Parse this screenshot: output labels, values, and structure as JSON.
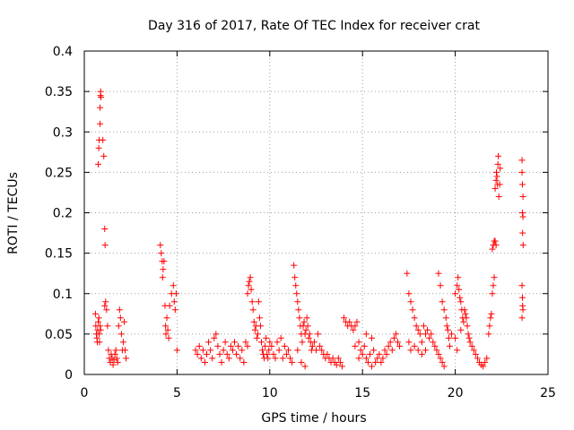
{
  "chart_data": {
    "type": "scatter",
    "title": "Day 316 of 2017, Rate Of TEC Index for receiver crat",
    "xlabel": "GPS time / hours",
    "ylabel": "ROTI / TECUs",
    "xlim": [
      0,
      25
    ],
    "ylim": [
      0,
      0.4
    ],
    "xticks": [
      0,
      5,
      10,
      15,
      20,
      25
    ],
    "yticks": [
      0,
      0.05,
      0.1,
      0.15,
      0.2,
      0.25,
      0.3,
      0.35,
      0.4
    ],
    "xtick_labels": [
      "0",
      "5",
      "10",
      "15",
      "20",
      "25"
    ],
    "ytick_labels": [
      "0",
      "0.05",
      "0.1",
      "0.15",
      "0.2",
      "0.25",
      "0.3",
      "0.35",
      "0.4"
    ],
    "grid": true,
    "marker": "+",
    "color": "#ff0000",
    "series": [
      {
        "name": "ROTI",
        "points": [
          [
            0.6,
            0.075
          ],
          [
            0.62,
            0.06
          ],
          [
            0.65,
            0.05
          ],
          [
            0.68,
            0.045
          ],
          [
            0.7,
            0.04
          ],
          [
            0.72,
            0.055
          ],
          [
            0.75,
            0.065
          ],
          [
            0.78,
            0.07
          ],
          [
            0.8,
            0.05
          ],
          [
            0.82,
            0.04
          ],
          [
            0.85,
            0.06
          ],
          [
            0.88,
            0.055
          ],
          [
            0.75,
            0.26
          ],
          [
            0.78,
            0.28
          ],
          [
            0.8,
            0.29
          ],
          [
            0.85,
            0.31
          ],
          [
            0.85,
            0.33
          ],
          [
            0.87,
            0.345
          ],
          [
            0.88,
            0.35
          ],
          [
            0.9,
            0.343
          ],
          [
            1.0,
            0.29
          ],
          [
            1.05,
            0.27
          ],
          [
            1.1,
            0.18
          ],
          [
            1.12,
            0.16
          ],
          [
            1.1,
            0.085
          ],
          [
            1.15,
            0.09
          ],
          [
            1.2,
            0.08
          ],
          [
            1.25,
            0.06
          ],
          [
            1.3,
            0.03
          ],
          [
            1.35,
            0.02
          ],
          [
            1.4,
            0.015
          ],
          [
            1.45,
            0.025
          ],
          [
            1.5,
            0.02
          ],
          [
            1.55,
            0.012
          ],
          [
            1.6,
            0.018
          ],
          [
            1.65,
            0.025
          ],
          [
            1.7,
            0.03
          ],
          [
            1.75,
            0.02
          ],
          [
            1.8,
            0.015
          ],
          [
            1.85,
            0.06
          ],
          [
            1.9,
            0.08
          ],
          [
            1.95,
            0.07
          ],
          [
            2.0,
            0.05
          ],
          [
            2.05,
            0.03
          ],
          [
            2.1,
            0.04
          ],
          [
            2.15,
            0.065
          ],
          [
            2.2,
            0.03
          ],
          [
            2.25,
            0.02
          ],
          [
            4.1,
            0.16
          ],
          [
            4.15,
            0.15
          ],
          [
            4.2,
            0.14
          ],
          [
            4.22,
            0.12
          ],
          [
            4.25,
            0.13
          ],
          [
            4.3,
            0.14
          ],
          [
            4.35,
            0.085
          ],
          [
            4.38,
            0.06
          ],
          [
            4.4,
            0.05
          ],
          [
            4.45,
            0.07
          ],
          [
            4.5,
            0.055
          ],
          [
            4.55,
            0.045
          ],
          [
            4.6,
            0.085
          ],
          [
            4.7,
            0.1
          ],
          [
            4.8,
            0.11
          ],
          [
            4.85,
            0.09
          ],
          [
            4.9,
            0.08
          ],
          [
            4.95,
            0.1
          ],
          [
            5.0,
            0.03
          ],
          [
            6.0,
            0.03
          ],
          [
            6.1,
            0.025
          ],
          [
            6.2,
            0.035
          ],
          [
            6.3,
            0.02
          ],
          [
            6.4,
            0.03
          ],
          [
            6.5,
            0.015
          ],
          [
            6.6,
            0.025
          ],
          [
            6.7,
            0.04
          ],
          [
            6.8,
            0.03
          ],
          [
            6.9,
            0.02
          ],
          [
            7.0,
            0.045
          ],
          [
            7.1,
            0.05
          ],
          [
            7.2,
            0.035
          ],
          [
            7.3,
            0.025
          ],
          [
            7.4,
            0.015
          ],
          [
            7.5,
            0.03
          ],
          [
            7.6,
            0.04
          ],
          [
            7.7,
            0.025
          ],
          [
            7.8,
            0.02
          ],
          [
            7.9,
            0.035
          ],
          [
            8.0,
            0.03
          ],
          [
            8.1,
            0.04
          ],
          [
            8.2,
            0.025
          ],
          [
            8.3,
            0.035
          ],
          [
            8.4,
            0.02
          ],
          [
            8.5,
            0.03
          ],
          [
            8.6,
            0.015
          ],
          [
            8.7,
            0.04
          ],
          [
            8.8,
            0.035
          ],
          [
            8.8,
            0.1
          ],
          [
            8.85,
            0.11
          ],
          [
            8.9,
            0.115
          ],
          [
            8.95,
            0.12
          ],
          [
            9.0,
            0.105
          ],
          [
            9.05,
            0.09
          ],
          [
            9.1,
            0.08
          ],
          [
            9.15,
            0.065
          ],
          [
            9.2,
            0.055
          ],
          [
            9.25,
            0.06
          ],
          [
            9.3,
            0.045
          ],
          [
            9.35,
            0.05
          ],
          [
            9.4,
            0.09
          ],
          [
            9.45,
            0.07
          ],
          [
            9.5,
            0.06
          ],
          [
            9.55,
            0.04
          ],
          [
            9.6,
            0.03
          ],
          [
            9.65,
            0.025
          ],
          [
            9.7,
            0.02
          ],
          [
            9.75,
            0.035
          ],
          [
            9.8,
            0.045
          ],
          [
            9.85,
            0.025
          ],
          [
            9.9,
            0.02
          ],
          [
            9.95,
            0.03
          ],
          [
            10.0,
            0.04
          ],
          [
            10.1,
            0.035
          ],
          [
            10.2,
            0.025
          ],
          [
            10.3,
            0.02
          ],
          [
            10.4,
            0.04
          ],
          [
            10.5,
            0.03
          ],
          [
            10.6,
            0.045
          ],
          [
            10.7,
            0.02
          ],
          [
            10.8,
            0.035
          ],
          [
            10.9,
            0.025
          ],
          [
            11.0,
            0.03
          ],
          [
            11.1,
            0.02
          ],
          [
            11.2,
            0.015
          ],
          [
            11.3,
            0.135
          ],
          [
            11.35,
            0.12
          ],
          [
            11.4,
            0.11
          ],
          [
            11.45,
            0.1
          ],
          [
            11.5,
            0.09
          ],
          [
            11.55,
            0.08
          ],
          [
            11.6,
            0.07
          ],
          [
            11.65,
            0.06
          ],
          [
            11.7,
            0.05
          ],
          [
            11.75,
            0.04
          ],
          [
            11.8,
            0.06
          ],
          [
            11.85,
            0.065
          ],
          [
            11.9,
            0.05
          ],
          [
            11.95,
            0.055
          ],
          [
            12.0,
            0.07
          ],
          [
            12.05,
            0.06
          ],
          [
            12.1,
            0.045
          ],
          [
            12.15,
            0.05
          ],
          [
            12.2,
            0.04
          ],
          [
            12.25,
            0.03
          ],
          [
            12.3,
            0.035
          ],
          [
            12.4,
            0.04
          ],
          [
            12.5,
            0.03
          ],
          [
            12.6,
            0.05
          ],
          [
            12.7,
            0.035
          ],
          [
            12.8,
            0.03
          ],
          [
            12.9,
            0.025
          ],
          [
            13.0,
            0.02
          ],
          [
            13.1,
            0.025
          ],
          [
            13.2,
            0.02
          ],
          [
            13.3,
            0.015
          ],
          [
            13.4,
            0.02
          ],
          [
            13.5,
            0.015
          ],
          [
            13.6,
            0.012
          ],
          [
            13.7,
            0.02
          ],
          [
            13.8,
            0.015
          ],
          [
            13.9,
            0.01
          ],
          [
            11.5,
            0.03
          ],
          [
            11.7,
            0.015
          ],
          [
            11.9,
            0.01
          ],
          [
            14.0,
            0.07
          ],
          [
            14.1,
            0.065
          ],
          [
            14.2,
            0.06
          ],
          [
            14.3,
            0.065
          ],
          [
            14.4,
            0.06
          ],
          [
            14.5,
            0.055
          ],
          [
            14.6,
            0.06
          ],
          [
            14.7,
            0.065
          ],
          [
            14.8,
            0.04
          ],
          [
            14.9,
            0.03
          ],
          [
            15.0,
            0.025
          ],
          [
            15.1,
            0.035
          ],
          [
            15.2,
            0.02
          ],
          [
            15.3,
            0.015
          ],
          [
            15.4,
            0.025
          ],
          [
            15.5,
            0.01
          ],
          [
            15.6,
            0.03
          ],
          [
            15.7,
            0.015
          ],
          [
            15.8,
            0.02
          ],
          [
            15.9,
            0.025
          ],
          [
            16.0,
            0.015
          ],
          [
            16.1,
            0.02
          ],
          [
            16.2,
            0.03
          ],
          [
            16.3,
            0.025
          ],
          [
            16.4,
            0.035
          ],
          [
            16.5,
            0.04
          ],
          [
            16.6,
            0.03
          ],
          [
            16.7,
            0.045
          ],
          [
            16.8,
            0.05
          ],
          [
            16.9,
            0.04
          ],
          [
            17.0,
            0.035
          ],
          [
            14.6,
            0.035
          ],
          [
            14.8,
            0.02
          ],
          [
            15.2,
            0.05
          ],
          [
            15.5,
            0.045
          ],
          [
            17.4,
            0.125
          ],
          [
            17.5,
            0.1
          ],
          [
            17.6,
            0.09
          ],
          [
            17.7,
            0.08
          ],
          [
            17.8,
            0.07
          ],
          [
            17.9,
            0.06
          ],
          [
            18.0,
            0.055
          ],
          [
            18.1,
            0.05
          ],
          [
            18.2,
            0.04
          ],
          [
            18.3,
            0.06
          ],
          [
            18.4,
            0.05
          ],
          [
            18.5,
            0.055
          ],
          [
            18.6,
            0.045
          ],
          [
            18.7,
            0.05
          ],
          [
            18.8,
            0.04
          ],
          [
            18.9,
            0.035
          ],
          [
            19.0,
            0.03
          ],
          [
            19.1,
            0.025
          ],
          [
            19.2,
            0.02
          ],
          [
            19.3,
            0.015
          ],
          [
            19.4,
            0.01
          ],
          [
            17.5,
            0.04
          ],
          [
            17.6,
            0.03
          ],
          [
            17.8,
            0.035
          ],
          [
            18.0,
            0.03
          ],
          [
            18.2,
            0.025
          ],
          [
            18.4,
            0.03
          ],
          [
            19.1,
            0.125
          ],
          [
            19.2,
            0.11
          ],
          [
            19.3,
            0.09
          ],
          [
            19.4,
            0.08
          ],
          [
            19.5,
            0.07
          ],
          [
            19.55,
            0.06
          ],
          [
            19.6,
            0.055
          ],
          [
            19.65,
            0.045
          ],
          [
            19.7,
            0.035
          ],
          [
            19.8,
            0.05
          ],
          [
            20.0,
            0.1
          ],
          [
            20.1,
            0.11
          ],
          [
            20.15,
            0.12
          ],
          [
            20.2,
            0.105
          ],
          [
            20.25,
            0.095
          ],
          [
            20.3,
            0.09
          ],
          [
            20.35,
            0.08
          ],
          [
            20.4,
            0.07
          ],
          [
            20.45,
            0.065
          ],
          [
            20.5,
            0.08
          ],
          [
            20.55,
            0.075
          ],
          [
            20.6,
            0.07
          ],
          [
            20.65,
            0.06
          ],
          [
            20.7,
            0.05
          ],
          [
            20.75,
            0.045
          ],
          [
            20.8,
            0.04
          ],
          [
            20.9,
            0.035
          ],
          [
            21.0,
            0.03
          ],
          [
            21.1,
            0.025
          ],
          [
            21.2,
            0.02
          ],
          [
            21.3,
            0.015
          ],
          [
            21.4,
            0.012
          ],
          [
            21.5,
            0.01
          ],
          [
            21.6,
            0.015
          ],
          [
            21.7,
            0.02
          ],
          [
            20.0,
            0.045
          ],
          [
            20.1,
            0.03
          ],
          [
            20.3,
            0.055
          ],
          [
            21.8,
            0.05
          ],
          [
            21.85,
            0.06
          ],
          [
            21.9,
            0.07
          ],
          [
            21.95,
            0.075
          ],
          [
            22.0,
            0.1
          ],
          [
            22.05,
            0.11
          ],
          [
            22.1,
            0.12
          ],
          [
            22.0,
            0.155
          ],
          [
            22.05,
            0.16
          ],
          [
            22.1,
            0.165
          ],
          [
            22.15,
            0.165
          ],
          [
            22.2,
            0.16
          ],
          [
            22.15,
            0.23
          ],
          [
            22.2,
            0.24
          ],
          [
            22.22,
            0.25
          ],
          [
            22.25,
            0.245
          ],
          [
            22.28,
            0.235
          ],
          [
            22.3,
            0.26
          ],
          [
            22.32,
            0.27
          ],
          [
            22.35,
            0.22
          ],
          [
            22.4,
            0.235
          ],
          [
            22.42,
            0.255
          ],
          [
            23.6,
            0.265
          ],
          [
            23.6,
            0.25
          ],
          [
            23.62,
            0.235
          ],
          [
            23.65,
            0.22
          ],
          [
            23.62,
            0.2
          ],
          [
            23.65,
            0.195
          ],
          [
            23.63,
            0.175
          ],
          [
            23.66,
            0.16
          ],
          [
            23.6,
            0.11
          ],
          [
            23.62,
            0.095
          ],
          [
            23.63,
            0.085
          ],
          [
            23.65,
            0.08
          ],
          [
            23.6,
            0.07
          ]
        ]
      }
    ]
  }
}
